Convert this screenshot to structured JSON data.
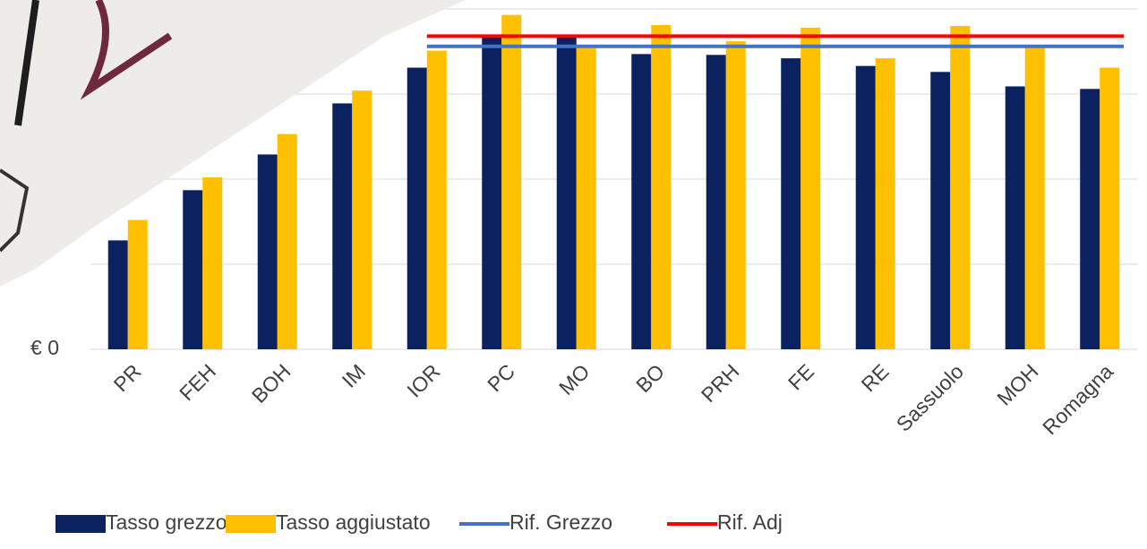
{
  "chart_data": {
    "type": "bar",
    "categories": [
      "PR",
      "FEH",
      "BOH",
      "IM",
      "IOR",
      "PC",
      "MO",
      "BO",
      "PRH",
      "FE",
      "RE",
      "Sassuolo",
      "MOH",
      "Romagna"
    ],
    "series": [
      {
        "name": "Tasso grezzo",
        "type": "bar",
        "color": "#0b2160",
        "values": [
          1.28,
          1.87,
          2.29,
          2.89,
          3.31,
          3.68,
          3.68,
          3.47,
          3.46,
          3.42,
          3.33,
          3.26,
          3.09,
          3.06
        ]
      },
      {
        "name": "Tasso aggiustato",
        "type": "bar",
        "color": "#ffc000",
        "values": [
          1.52,
          2.02,
          2.53,
          3.04,
          3.51,
          3.93,
          3.54,
          3.81,
          3.62,
          3.78,
          3.42,
          3.8,
          3.56,
          3.31
        ]
      },
      {
        "name": "Rif. Grezzo",
        "type": "line",
        "color": "#4472c4",
        "values": [
          null,
          null,
          null,
          null,
          3.56,
          3.56,
          3.56,
          3.56,
          3.56,
          3.56,
          3.56,
          3.56,
          3.56,
          3.56
        ]
      },
      {
        "name": "Rif. Adj",
        "type": "line",
        "color": "#ff0000",
        "values": [
          null,
          null,
          null,
          null,
          3.68,
          3.68,
          3.68,
          3.68,
          3.68,
          3.68,
          3.68,
          3.68,
          3.68,
          3.68
        ]
      }
    ],
    "ylim": [
      0,
      4
    ],
    "yticks": [
      {
        "value": 0,
        "label": "€ 0"
      }
    ],
    "gridlines": [
      1,
      2,
      3,
      4
    ],
    "grid": true
  }
}
